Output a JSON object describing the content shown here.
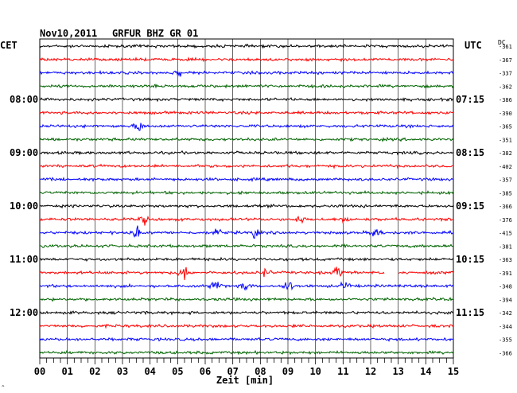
{
  "header": {
    "date": "Nov10,2011",
    "station": "GRFUR BHZ GR 01",
    "left_zone": "CET",
    "right_zone": "UTC",
    "dc_label": "DC"
  },
  "chart_data": {
    "type": "line",
    "title": "Nov10,2011   GRFUR BHZ GR 01",
    "xlabel": "Zeit [min]",
    "x_ticks": [
      "00",
      "01",
      "02",
      "03",
      "04",
      "05",
      "06",
      "07",
      "08",
      "09",
      "10",
      "11",
      "12",
      "13",
      "14",
      "15"
    ],
    "xlim": [
      0,
      15
    ],
    "grid": true,
    "traces_per_hour": 4,
    "cet_labels": [
      "08:00",
      "09:00",
      "10:00",
      "11:00",
      "12:00"
    ],
    "utc_labels": [
      "07:15",
      "08:15",
      "09:15",
      "10:15",
      "11:15"
    ],
    "colors": [
      "#000000",
      "#ff0000",
      "#0000ff",
      "#006400"
    ],
    "dc_offsets": [
      -361,
      -367,
      -337,
      -362,
      -386,
      -390,
      -365,
      -351,
      -382,
      -402,
      -357,
      -385,
      -366,
      -376,
      -415,
      -381,
      -363,
      -391,
      -348,
      -394,
      -342,
      -344,
      -355,
      -366
    ],
    "events": [
      {
        "trace": 2,
        "minute": 5.0,
        "amp": 1.2
      },
      {
        "trace": 6,
        "minute": 3.6,
        "amp": 2.0
      },
      {
        "trace": 13,
        "minute": 3.8,
        "amp": 1.6
      },
      {
        "trace": 13,
        "minute": 9.4,
        "amp": 1.5
      },
      {
        "trace": 13,
        "minute": 11.1,
        "amp": 1.4
      },
      {
        "trace": 14,
        "minute": 3.5,
        "amp": 2.2
      },
      {
        "trace": 14,
        "minute": 6.4,
        "amp": 1.7
      },
      {
        "trace": 14,
        "minute": 7.8,
        "amp": 2.0
      },
      {
        "trace": 14,
        "minute": 12.2,
        "amp": 2.6
      },
      {
        "trace": 17,
        "minute": 5.2,
        "amp": 3.2
      },
      {
        "trace": 17,
        "minute": 8.2,
        "amp": 1.4
      },
      {
        "trace": 17,
        "minute": 10.8,
        "amp": 2.2
      },
      {
        "trace": 18,
        "minute": 6.4,
        "amp": 2.6
      },
      {
        "trace": 18,
        "minute": 7.5,
        "amp": 1.6
      },
      {
        "trace": 18,
        "minute": 9.0,
        "amp": 2.2
      },
      {
        "trace": 18,
        "minute": 11.1,
        "amp": 1.5
      }
    ],
    "gaps": [
      {
        "trace": 17,
        "from": 12.5,
        "to": 13.0
      }
    ]
  }
}
